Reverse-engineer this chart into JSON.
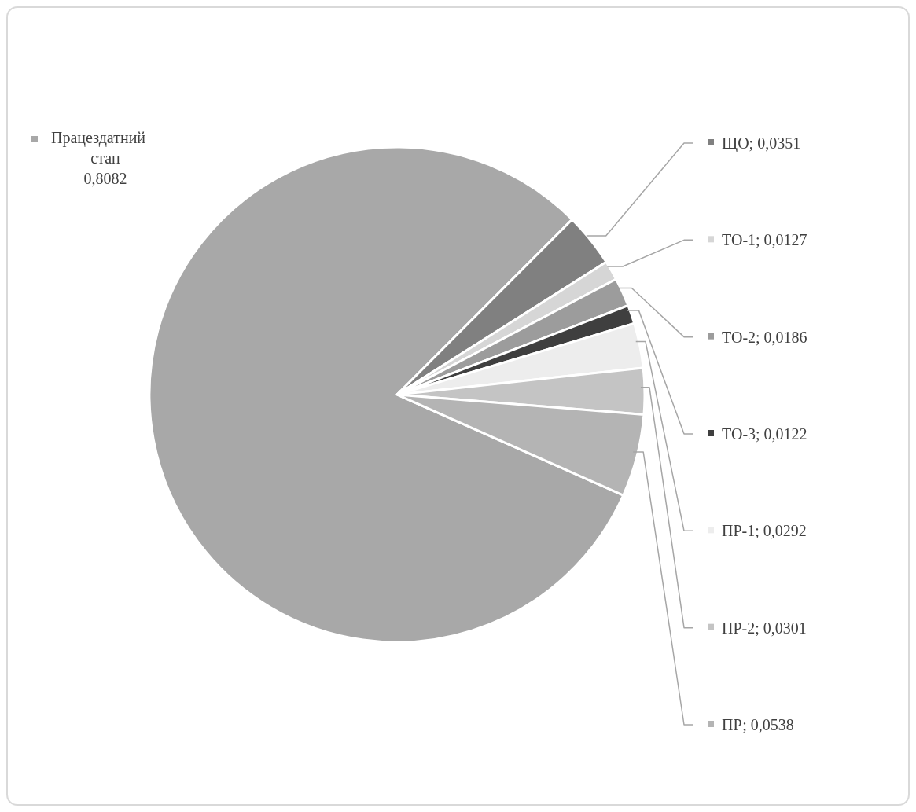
{
  "chart_data": {
    "type": "pie",
    "categories": [
      "Працездатний стан",
      "ЩО",
      "ТО-1",
      "ТО-2",
      "ТО-3",
      "ПР-1",
      "ПР-2",
      "ПР"
    ],
    "values": [
      0.8082,
      0.0351,
      0.0127,
      0.0186,
      0.0122,
      0.0292,
      0.0301,
      0.0538
    ],
    "value_labels": [
      "0,8082",
      "0,0351",
      "0,0127",
      "0,0186",
      "0,0122",
      "0,0292",
      "0,0301",
      "0,0538"
    ],
    "legend": "right",
    "colors": [
      "#a8a8a8",
      "#808080",
      "#d6d6d6",
      "#9c9c9c",
      "#3f3f3f",
      "#ededed",
      "#c4c4c4",
      "#b4b4b4"
    ]
  }
}
